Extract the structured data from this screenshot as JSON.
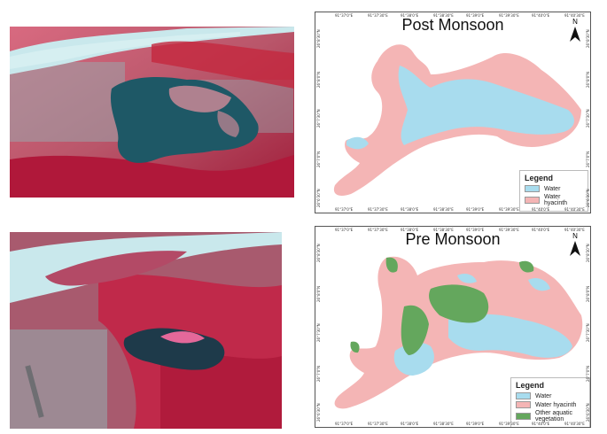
{
  "colors": {
    "water": "#a8dcee",
    "water_hyacinth": "#f4b5b5",
    "other_vegetation": "#64a75d",
    "sat_vegetation": "#c22a45",
    "sat_water": "#1e5866",
    "sat_urban": "#8a9aa3",
    "river": "#c9e8ec"
  },
  "post_map": {
    "title": "Post Monsoon",
    "north": "N",
    "legend": {
      "title": "Legend",
      "items": [
        {
          "label": "Water",
          "color_key": "water"
        },
        {
          "label": "Water hyacinth",
          "color_key": "water_hyacinth"
        }
      ]
    },
    "top_ticks": [
      "91°37'0\"E",
      "91°37'30\"E",
      "91°38'0\"E",
      "91°38'30\"E",
      "91°39'0\"E",
      "91°39'30\"E",
      "91°40'0\"E",
      "91°40'30\"E"
    ],
    "bottom_ticks": [
      "91°37'0\"E",
      "91°37'30\"E",
      "91°38'0\"E",
      "91°38'30\"E",
      "91°39'0\"E",
      "91°39'30\"E",
      "91°40'0\"E",
      "91°40'30\"E"
    ],
    "left_ticks": [
      "26°8'30\"N",
      "26°8'0\"N",
      "26°7'30\"N",
      "26°7'0\"N",
      "26°6'30\"N"
    ],
    "right_ticks": [
      "26°8'30\"N",
      "26°8'0\"N",
      "26°7'30\"N",
      "26°7'0\"N",
      "26°6'30\"N"
    ]
  },
  "pre_map": {
    "title": "Pre Monsoon",
    "north": "N",
    "legend": {
      "title": "Legend",
      "items": [
        {
          "label": "Water",
          "color_key": "water"
        },
        {
          "label": "Water hyacinth",
          "color_key": "water_hyacinth"
        },
        {
          "label": "Other aquatic vegetation",
          "color_key": "other_vegetation"
        }
      ]
    },
    "top_ticks": [
      "91°37'0\"E",
      "91°37'30\"E",
      "91°38'0\"E",
      "91°38'30\"E",
      "91°39'0\"E",
      "91°39'30\"E",
      "91°40'0\"E",
      "91°40'30\"E"
    ],
    "bottom_ticks": [
      "91°37'0\"E",
      "91°37'30\"E",
      "91°38'0\"E",
      "91°38'30\"E",
      "91°39'0\"E",
      "91°39'30\"E",
      "91°40'0\"E",
      "91°40'30\"E"
    ],
    "left_ticks": [
      "26°8'30\"N",
      "26°8'0\"N",
      "26°7'30\"N",
      "26°7'0\"N",
      "26°6'30\"N"
    ],
    "right_ticks": [
      "26°8'30\"N",
      "26°8'0\"N",
      "26°7'30\"N",
      "26°7'0\"N",
      "26°6'30\"N"
    ]
  }
}
